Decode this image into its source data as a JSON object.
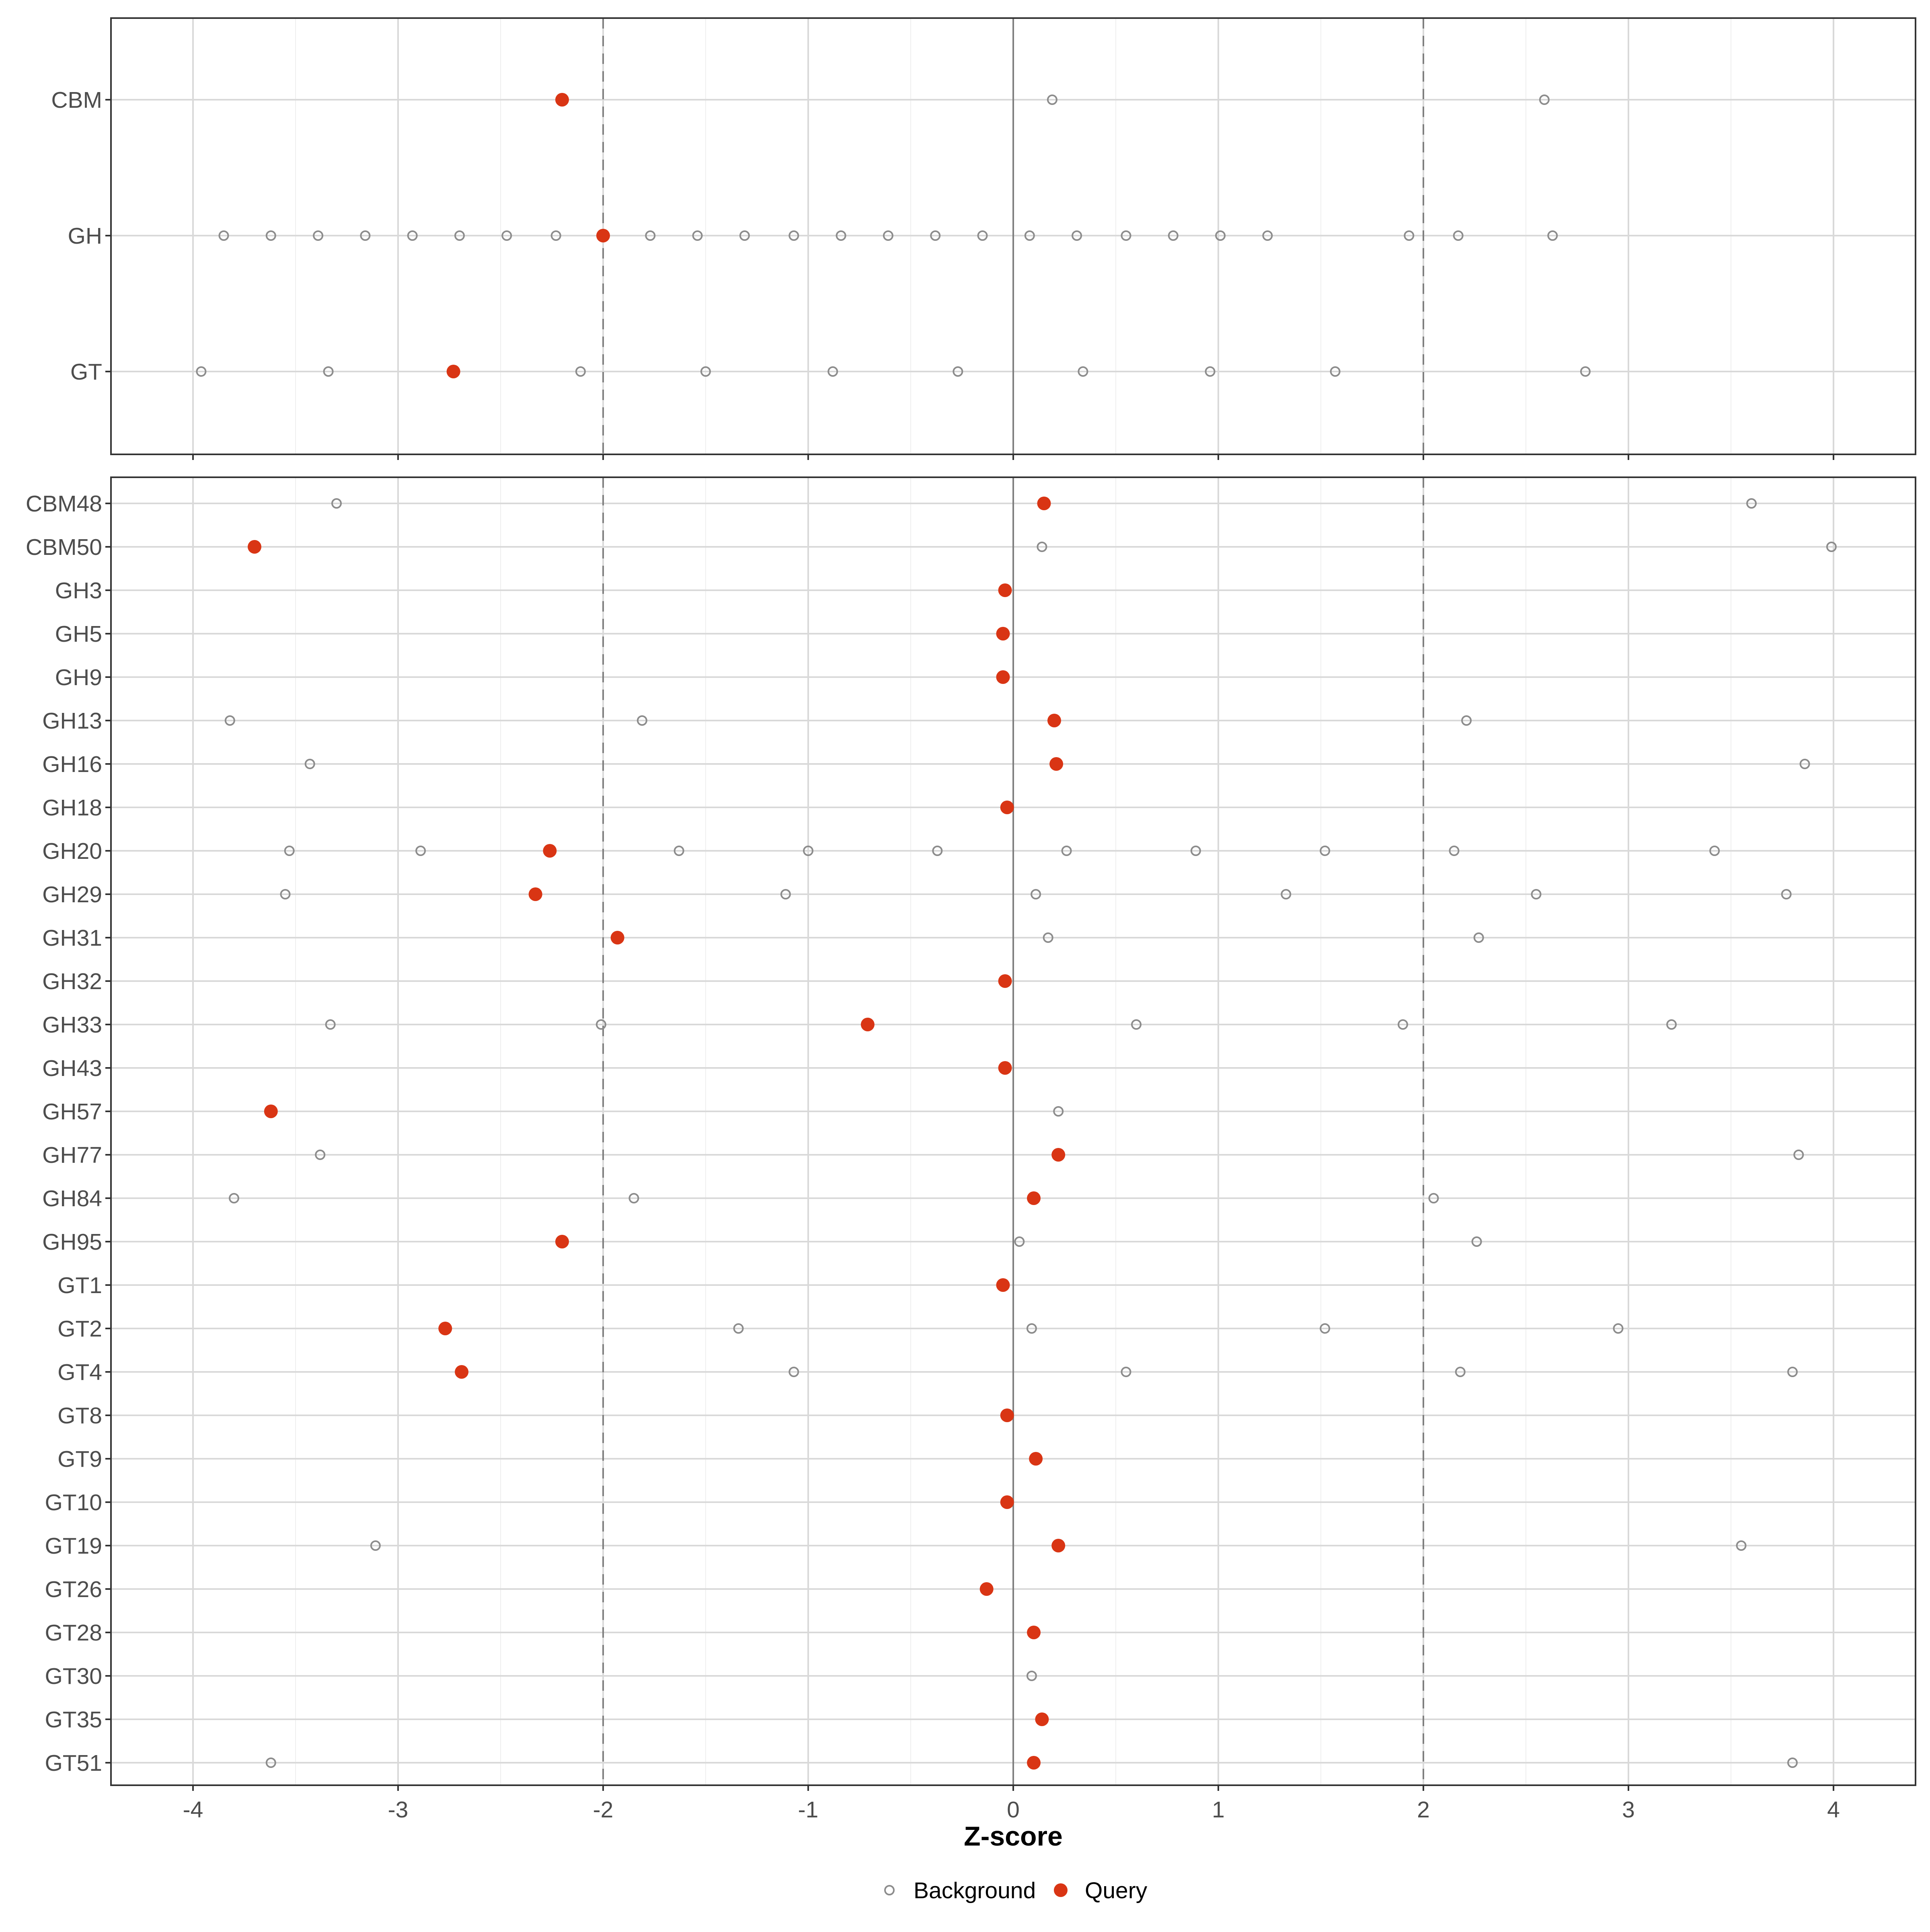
{
  "chart_data": {
    "type": "scatter",
    "xlabel": "Z-score",
    "xlim": [
      -4.4,
      4.4
    ],
    "x_ticks": [
      "-4",
      "-3",
      "-2",
      "-1",
      "0",
      "1",
      "2",
      "3",
      "4"
    ],
    "reference_lines": {
      "dashed": [
        -2,
        2
      ],
      "solid": [
        0
      ]
    },
    "grid": true,
    "legend": {
      "position": "bottom",
      "items": [
        {
          "label": "Background",
          "shape": "open-circle",
          "color": "#8c8c8c"
        },
        {
          "label": "Query",
          "shape": "filled-circle",
          "color": "#d93514"
        }
      ]
    },
    "colors": {
      "query": "#d93514",
      "background": "#8c8c8c",
      "grid": "#d9d9d9",
      "reference": "#7f7f7f"
    },
    "panels": [
      {
        "categories": [
          "CBM",
          "GH",
          "GT"
        ],
        "rows": [
          {
            "label": "CBM",
            "query": -2.2,
            "background": [
              0.19,
              2.59
            ]
          },
          {
            "label": "GH",
            "query": -2.0,
            "background": [
              -3.85,
              -3.62,
              -3.39,
              -3.16,
              -2.93,
              -2.7,
              -2.47,
              -2.23,
              -1.77,
              -1.54,
              -1.31,
              -1.07,
              -0.84,
              -0.61,
              -0.38,
              -0.15,
              0.08,
              0.31,
              0.55,
              0.78,
              1.01,
              1.24,
              1.93,
              2.17,
              2.63
            ]
          },
          {
            "label": "GT",
            "query": -2.73,
            "background": [
              -3.96,
              -3.34,
              -2.11,
              -1.5,
              -0.88,
              -0.27,
              0.34,
              0.96,
              1.57,
              2.79
            ]
          }
        ]
      },
      {
        "categories": [
          "CBM48",
          "CBM50",
          "GH3",
          "GH5",
          "GH9",
          "GH13",
          "GH16",
          "GH18",
          "GH20",
          "GH29",
          "GH31",
          "GH32",
          "GH33",
          "GH43",
          "GH57",
          "GH77",
          "GH84",
          "GH95",
          "GT1",
          "GT2",
          "GT4",
          "GT8",
          "GT9",
          "GT10",
          "GT19",
          "GT26",
          "GT28",
          "GT30",
          "GT35",
          "GT51"
        ],
        "rows": [
          {
            "label": "CBM48",
            "query": 0.15,
            "background": [
              -3.3,
              3.6
            ]
          },
          {
            "label": "CBM50",
            "query": -3.7,
            "background": [
              0.14,
              3.99
            ]
          },
          {
            "label": "GH3",
            "query": -0.04,
            "background": []
          },
          {
            "label": "GH5",
            "query": -0.05,
            "background": []
          },
          {
            "label": "GH9",
            "query": -0.05,
            "background": []
          },
          {
            "label": "GH13",
            "query": 0.2,
            "background": [
              -3.82,
              -1.81,
              2.21
            ]
          },
          {
            "label": "GH16",
            "query": 0.21,
            "background": [
              -3.43,
              3.86
            ]
          },
          {
            "label": "GH18",
            "query": -0.03,
            "background": []
          },
          {
            "label": "GH20",
            "query": -2.26,
            "background": [
              -3.53,
              -2.89,
              -1.63,
              -1.0,
              -0.37,
              0.26,
              0.89,
              1.52,
              2.15,
              3.42
            ]
          },
          {
            "label": "GH29",
            "query": -2.33,
            "background": [
              -3.55,
              -1.11,
              0.11,
              1.33,
              2.55,
              3.77
            ]
          },
          {
            "label": "GH31",
            "query": -1.93,
            "background": [
              0.17,
              2.27
            ]
          },
          {
            "label": "GH32",
            "query": -0.04,
            "background": []
          },
          {
            "label": "GH33",
            "query": -0.71,
            "background": [
              -3.33,
              -2.01,
              0.6,
              1.9,
              3.21
            ]
          },
          {
            "label": "GH43",
            "query": -0.04,
            "background": []
          },
          {
            "label": "GH57",
            "query": -3.62,
            "background": [
              0.22
            ]
          },
          {
            "label": "GH77",
            "query": 0.22,
            "background": [
              -3.38,
              3.83
            ]
          },
          {
            "label": "GH84",
            "query": 0.1,
            "background": [
              -3.8,
              -1.85,
              2.05
            ]
          },
          {
            "label": "GH95",
            "query": -2.2,
            "background": [
              0.03,
              2.26
            ]
          },
          {
            "label": "GT1",
            "query": -0.05,
            "background": []
          },
          {
            "label": "GT2",
            "query": -2.77,
            "background": [
              -1.34,
              0.09,
              1.52,
              2.95
            ]
          },
          {
            "label": "GT4",
            "query": -2.69,
            "background": [
              -1.07,
              0.55,
              2.18,
              3.8
            ]
          },
          {
            "label": "GT8",
            "query": -0.03,
            "background": []
          },
          {
            "label": "GT9",
            "query": 0.11,
            "background": []
          },
          {
            "label": "GT10",
            "query": -0.03,
            "background": []
          },
          {
            "label": "GT19",
            "query": 0.22,
            "background": [
              -3.11,
              3.55
            ]
          },
          {
            "label": "GT26",
            "query": -0.13,
            "background": []
          },
          {
            "label": "GT28",
            "query": 0.1,
            "background": []
          },
          {
            "label": "GT30",
            "query": null,
            "background": [
              0.09
            ]
          },
          {
            "label": "GT35",
            "query": 0.14,
            "background": []
          },
          {
            "label": "GT51",
            "query": 0.1,
            "background": [
              -3.62,
              3.8
            ]
          }
        ]
      }
    ]
  }
}
